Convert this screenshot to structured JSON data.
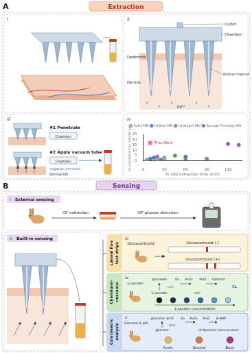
{
  "chart_data": {
    "type": "scatter",
    "x_label": "In vivo extraction time (min)",
    "y_label": "In vivo extraction volume (μL)",
    "xlim": [
      0,
      140
    ],
    "xticks": [
      0,
      30,
      60,
      90,
      120
    ],
    "ylim": [
      0,
      25
    ],
    "yticks": [
      0,
      5,
      10,
      15,
      20,
      25
    ],
    "grid": false,
    "legend": "top",
    "series": [
      {
        "name": "Solid MN",
        "color": "#a0a0a0",
        "marker": "circle",
        "x": [
          5,
          20,
          30
        ],
        "values": [
          1,
          1.5,
          2
        ]
      },
      {
        "name": "Hollow MN",
        "color": "#4a7fc1",
        "marker": "circle",
        "x": [
          10,
          15,
          25,
          60
        ],
        "values": [
          2,
          3,
          1,
          4
        ]
      },
      {
        "name": "Hydrogel MN",
        "color": "#5aa64a",
        "marker": "circle",
        "x": [
          30,
          45,
          60,
          90
        ],
        "values": [
          3,
          5,
          2,
          2
        ]
      },
      {
        "name": "Sponge-Forming MN",
        "color": "#a65fb8",
        "marker": "circle",
        "x": [
          20,
          120,
          135
        ],
        "values": [
          4,
          16,
          15
        ]
      }
    ],
    "annotation": {
      "text": "This Work",
      "x": 10,
      "y": 17,
      "color": "#e8647c",
      "marker": "star"
    }
  },
  "diagram": {
    "A": {
      "letter": "A",
      "header": "Extraction",
      "i": {
        "label": "i"
      },
      "ii": {
        "label": "ii",
        "outlet": "Outlet",
        "chamber": "Chamber",
        "epidermis": "Epidermis",
        "hollow_channel": "Hollow channel",
        "dermis": "Dermis",
        "isf": "ISF"
      },
      "iii": {
        "label": "iii",
        "step1": "#1 Penetrate",
        "chamber1": "Chamber",
        "step2": "#2 Apply vacuum tube",
        "chamber2": "Chamber",
        "pressure": "negative pressure",
        "dermal_isf": "Dermal ISF"
      },
      "iv": {
        "label": "iv"
      }
    },
    "B": {
      "letter": "B",
      "header": "Sensing",
      "i": {
        "label": "i",
        "title": "External sensing",
        "step1": "ISF extraction",
        "step2": "ISF glucose detection"
      },
      "ii": {
        "label": "ii",
        "title": "Built-in sensing"
      },
      "iii": {
        "label": "iii",
        "title": [
          "Lateral flow",
          "test strips"
        ],
        "analyte": "Glucocorticoid",
        "negative": "Glucocorticoid (-)",
        "positive": "Glucocorticoid (+)"
      },
      "iv": {
        "label": "iv",
        "title": [
          "Chemilumi-",
          "nescence"
        ],
        "analyte": "L-Lactate",
        "pyruvate": "pyruvate",
        "o2": "O₂",
        "h2o2": "H₂O₂",
        "h2o": "H₂O",
        "luminol": "luminol",
        "lactate": "L-Lactate",
        "lox": "LOx",
        "hrp": "HRP",
        "cl": "CL",
        "concentration": "L-Lactate concentration"
      },
      "v": {
        "label": "v",
        "title": [
          "Colorimetric",
          "analysis"
        ],
        "analyte": "Glucose & pH",
        "gluconic": "gluconic acid",
        "glucose": "glucose",
        "o2": "O₂",
        "h2o2": "H₂O₂",
        "h2o": "H₂O",
        "gox": "GOx",
        "hrp": "HRP",
        "aap": "4-AAP",
        "product": "quinone imine product",
        "ph": [
          "Acidic",
          "Neutral",
          "Basic"
        ]
      }
    }
  }
}
